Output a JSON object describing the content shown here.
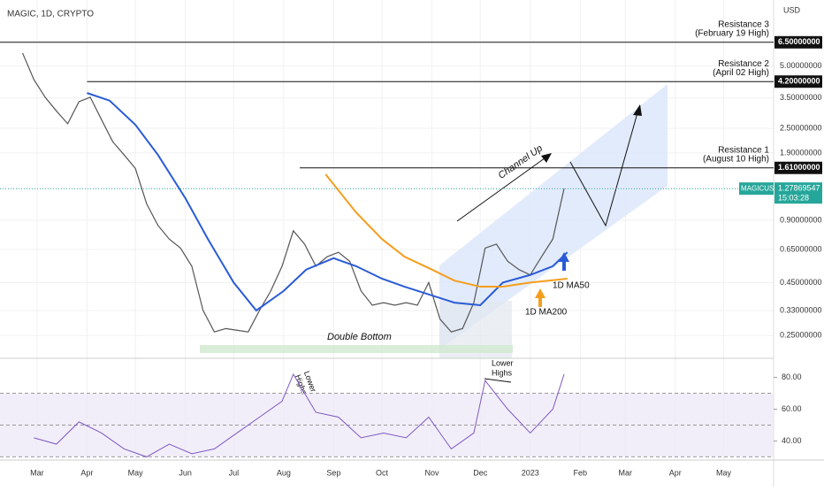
{
  "chart_data": {
    "type": "line",
    "title": "MAGIC, 1D, CRYPTO",
    "y_unit": "USD",
    "log_scale": true,
    "xlim": [
      "2022-02-06",
      "2023-06-01"
    ],
    "ylim": [
      0.194,
      10.4
    ],
    "xticks": [
      {
        "value": "2022-03-01",
        "label": "Mar"
      },
      {
        "value": "2022-04-01",
        "label": "Apr"
      },
      {
        "value": "2022-05-01",
        "label": "May"
      },
      {
        "value": "2022-06-01",
        "label": "Jun"
      },
      {
        "value": "2022-07-01",
        "label": "Jul"
      },
      {
        "value": "2022-08-01",
        "label": "Aug"
      },
      {
        "value": "2022-09-01",
        "label": "Sep"
      },
      {
        "value": "2022-10-01",
        "label": "Oct"
      },
      {
        "value": "2022-11-01",
        "label": "Nov"
      },
      {
        "value": "2022-12-01",
        "label": "Dec"
      },
      {
        "value": "2023-01-01",
        "label": "2023"
      },
      {
        "value": "2023-02-01",
        "label": "Feb"
      },
      {
        "value": "2023-03-01",
        "label": "Mar"
      },
      {
        "value": "2023-04-01",
        "label": "Apr"
      },
      {
        "value": "2023-05-01",
        "label": "May"
      }
    ],
    "yticks": [
      {
        "value": 5,
        "label": "5.00000000"
      },
      {
        "value": 3.5,
        "label": "3.50000000"
      },
      {
        "value": 2.5,
        "label": "2.50000000"
      },
      {
        "value": 1.9,
        "label": "1.90000000"
      },
      {
        "value": 0.9,
        "label": "0.90000000"
      },
      {
        "value": 0.65,
        "label": "0.65000000"
      },
      {
        "value": 0.45,
        "label": "0.45000000"
      },
      {
        "value": 0.33,
        "label": "0.33000000"
      },
      {
        "value": 0.25,
        "label": "0.25000000"
      }
    ],
    "levels": [
      {
        "value": 6.5,
        "label": "6.50000000",
        "text": [
          "Resistance 3",
          "(February 19 High)"
        ],
        "start": "2022-02-06"
      },
      {
        "value": 4.2,
        "label": "4.20000000",
        "text": [
          "Resistance 2",
          "(April 02 High)"
        ],
        "start": "2022-04-01"
      },
      {
        "value": 1.61,
        "label": "1.61000000",
        "text": [
          "Resistance 1",
          "(August 10 High)"
        ],
        "start": "2022-08-11"
      }
    ],
    "last_price": {
      "value": 1.27869547,
      "label": "1.27869547",
      "name": "MAGICUSD",
      "timer": "15:03:28"
    },
    "series": [
      {
        "name": "MAGICUSD",
        "color": "#555555",
        "x": [
          "2022-02-20",
          "2022-02-27",
          "2022-03-06",
          "2022-03-13",
          "2022-03-20",
          "2022-03-27",
          "2022-04-03",
          "2022-04-10",
          "2022-04-17",
          "2022-04-24",
          "2022-05-01",
          "2022-05-08",
          "2022-05-15",
          "2022-05-22",
          "2022-05-29",
          "2022-06-05",
          "2022-06-12",
          "2022-06-19",
          "2022-06-26",
          "2022-07-03",
          "2022-07-10",
          "2022-07-17",
          "2022-07-24",
          "2022-07-31",
          "2022-08-07",
          "2022-08-14",
          "2022-08-21",
          "2022-08-28",
          "2022-09-04",
          "2022-09-11",
          "2022-09-18",
          "2022-09-25",
          "2022-10-02",
          "2022-10-09",
          "2022-10-16",
          "2022-10-23",
          "2022-10-30",
          "2022-11-06",
          "2022-11-13",
          "2022-11-20",
          "2022-11-27",
          "2022-12-04",
          "2022-12-11",
          "2022-12-18",
          "2022-12-25",
          "2023-01-01",
          "2023-01-08",
          "2023-01-15",
          "2023-01-22"
        ],
        "values": [
          5.77,
          4.3,
          3.53,
          3.03,
          2.63,
          3.36,
          3.53,
          2.75,
          2.15,
          1.86,
          1.6,
          1.08,
          0.85,
          0.73,
          0.66,
          0.54,
          0.33,
          0.26,
          0.27,
          0.265,
          0.26,
          0.33,
          0.41,
          0.54,
          0.8,
          0.69,
          0.54,
          0.6,
          0.63,
          0.57,
          0.41,
          0.35,
          0.36,
          0.35,
          0.36,
          0.35,
          0.45,
          0.3,
          0.26,
          0.27,
          0.36,
          0.66,
          0.69,
          0.57,
          0.52,
          0.49,
          0.6,
          0.73,
          1.28
        ]
      },
      {
        "name": "1D MA50",
        "color": "#2a5bd7",
        "x": [
          "2022-04-01",
          "2022-04-15",
          "2022-05-01",
          "2022-05-15",
          "2022-06-01",
          "2022-06-15",
          "2022-07-01",
          "2022-07-15",
          "2022-08-01",
          "2022-08-15",
          "2022-09-01",
          "2022-09-15",
          "2022-10-01",
          "2022-10-15",
          "2022-11-01",
          "2022-11-15",
          "2022-12-01",
          "2022-12-15",
          "2023-01-01",
          "2023-01-15",
          "2023-01-24"
        ],
        "values": [
          3.7,
          3.4,
          2.6,
          1.86,
          1.15,
          0.73,
          0.45,
          0.33,
          0.41,
          0.52,
          0.59,
          0.54,
          0.47,
          0.43,
          0.39,
          0.36,
          0.35,
          0.45,
          0.49,
          0.54,
          0.63
        ]
      },
      {
        "name": "1D MA200",
        "color": "#f59d1d",
        "x": [
          "2022-08-27",
          "2022-09-15",
          "2022-10-01",
          "2022-10-15",
          "2022-11-01",
          "2022-11-15",
          "2022-12-01",
          "2022-12-15",
          "2023-01-01",
          "2023-01-24"
        ],
        "values": [
          1.5,
          0.98,
          0.73,
          0.6,
          0.52,
          0.46,
          0.43,
          0.43,
          0.45,
          0.47
        ]
      }
    ],
    "rsi": {
      "color": "#7e57c2",
      "ylim": [
        28,
        92
      ],
      "levels": [
        30,
        50,
        70
      ],
      "yticks": [
        {
          "value": 40,
          "label": "40.00"
        },
        {
          "value": 60,
          "label": "60.00"
        },
        {
          "value": 80,
          "label": "80.00"
        }
      ],
      "x": [
        "2022-02-27",
        "2022-03-13",
        "2022-03-27",
        "2022-04-10",
        "2022-04-24",
        "2022-05-08",
        "2022-05-22",
        "2022-06-05",
        "2022-06-19",
        "2022-07-03",
        "2022-07-17",
        "2022-07-31",
        "2022-08-07",
        "2022-08-21",
        "2022-09-04",
        "2022-09-18",
        "2022-10-02",
        "2022-10-16",
        "2022-10-30",
        "2022-11-13",
        "2022-11-27",
        "2022-12-04",
        "2022-12-18",
        "2023-01-01",
        "2023-01-15",
        "2023-01-22"
      ],
      "values": [
        42,
        38,
        52,
        45,
        35,
        30,
        38,
        32,
        35,
        45,
        55,
        65,
        82,
        58,
        55,
        42,
        45,
        42,
        55,
        35,
        45,
        78,
        60,
        45,
        60,
        82
      ]
    },
    "annotations": {
      "channel": "Channel Up",
      "double_bottom": "Double Bottom",
      "ma50": "1D MA50",
      "ma200": "1D MA200",
      "lower_highs": [
        "Lower",
        "Highs"
      ]
    }
  }
}
